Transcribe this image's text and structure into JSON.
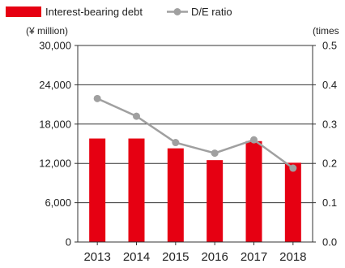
{
  "chart_data": {
    "type": "bar",
    "categories": [
      "2013",
      "2014",
      "2015",
      "2016",
      "2017",
      "2018"
    ],
    "series": [
      {
        "name": "Interest-bearing debt",
        "kind": "bar",
        "axis": "left",
        "color": "#e60012",
        "values": [
          15800,
          15800,
          14300,
          12500,
          15400,
          12100
        ]
      },
      {
        "name": "D/E ratio",
        "kind": "line",
        "axis": "right",
        "color": "#a0a0a0",
        "values": [
          0.365,
          0.32,
          0.253,
          0.226,
          0.26,
          0.188
        ]
      }
    ],
    "y_left": {
      "unit_label": "(¥ million)",
      "ticks": [
        "0",
        "6,000",
        "12,000",
        "18,000",
        "24,000",
        "30,000"
      ],
      "tick_values": [
        0,
        6000,
        12000,
        18000,
        24000,
        30000
      ],
      "ylim": [
        0,
        30000
      ]
    },
    "y_right": {
      "unit_label": "(times",
      "ticks": [
        "0.0",
        "0.1",
        "0.2",
        "0.3",
        "0.4",
        "0.5"
      ],
      "tick_values": [
        0,
        0.1,
        0.2,
        0.3,
        0.4,
        0.5
      ],
      "ylim": [
        0,
        0.5
      ]
    },
    "grid": true,
    "legend_position": "top-left"
  }
}
